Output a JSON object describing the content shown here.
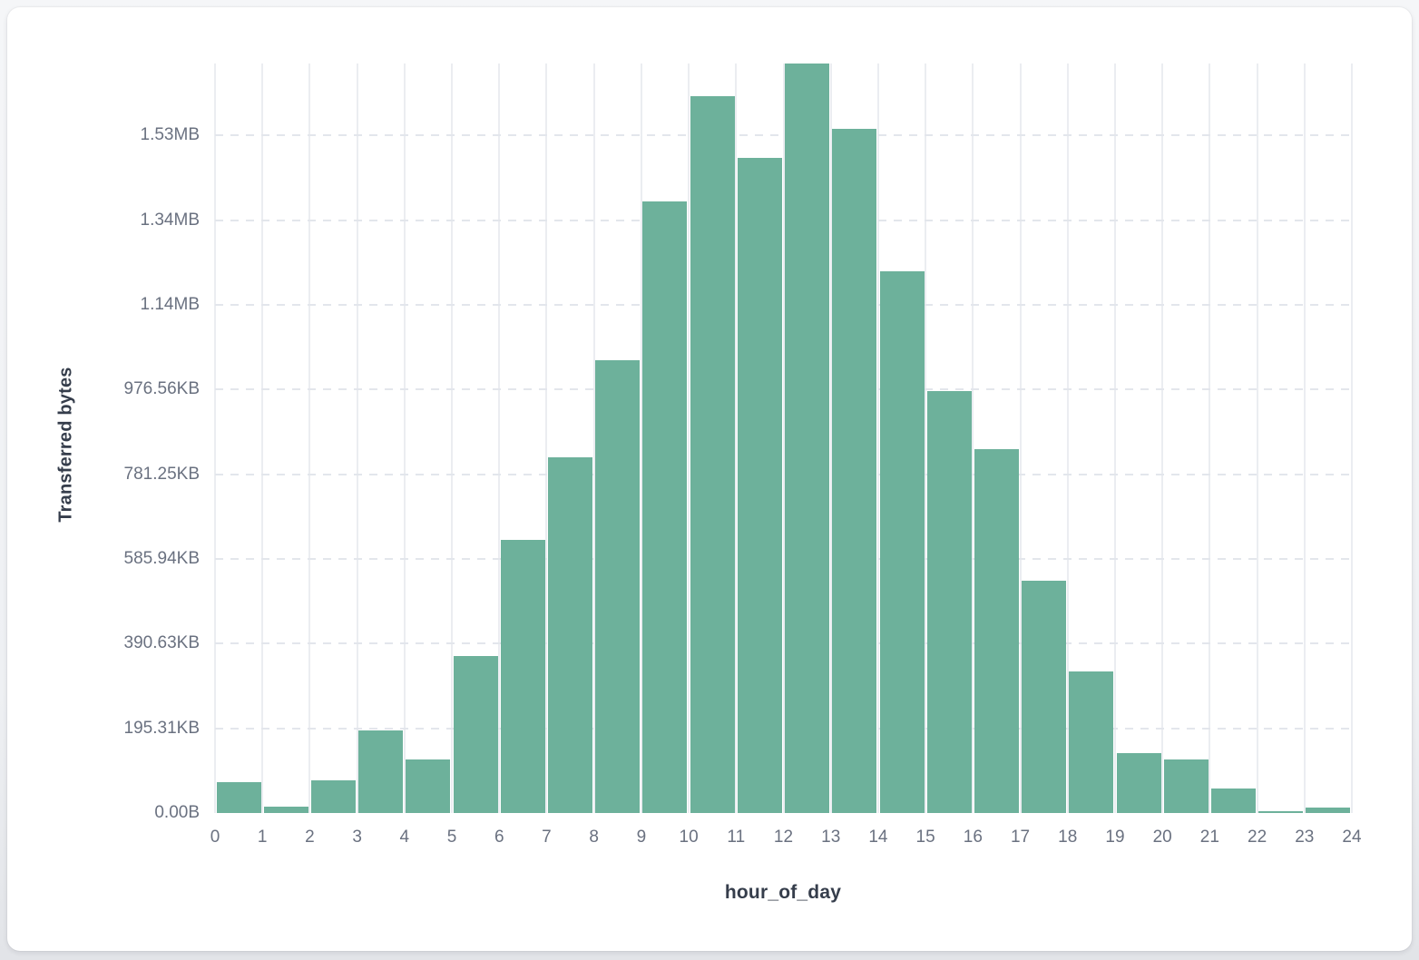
{
  "chart_data": {
    "type": "bar",
    "title": "",
    "xlabel": "hour_of_day",
    "ylabel": "Transferred bytes",
    "y_units": "bytes",
    "bar_color": "#6db19b",
    "grid": true,
    "legend": "none",
    "ylim": [
      0,
      1770000
    ],
    "x_tick_labels": [
      "0",
      "1",
      "2",
      "3",
      "4",
      "5",
      "6",
      "7",
      "8",
      "9",
      "10",
      "11",
      "12",
      "13",
      "14",
      "15",
      "16",
      "17",
      "18",
      "19",
      "20",
      "21",
      "22",
      "23",
      "24"
    ],
    "y_tick_labels": [
      {
        "label": "0.00B",
        "bytes": 0
      },
      {
        "label": "195.31KB",
        "bytes": 200000
      },
      {
        "label": "390.63KB",
        "bytes": 400000
      },
      {
        "label": "585.94KB",
        "bytes": 600000
      },
      {
        "label": "781.25KB",
        "bytes": 800000
      },
      {
        "label": "976.56KB",
        "bytes": 1000000
      },
      {
        "label": "1.14MB",
        "bytes": 1200000
      },
      {
        "label": "1.34MB",
        "bytes": 1400000
      },
      {
        "label": "1.53MB",
        "bytes": 1600000
      }
    ],
    "categories": [
      "0",
      "1",
      "2",
      "3",
      "4",
      "5",
      "6",
      "7",
      "8",
      "9",
      "10",
      "11",
      "12",
      "13",
      "14",
      "15",
      "16",
      "17",
      "18",
      "19",
      "20",
      "21",
      "22",
      "23"
    ],
    "values": [
      73000,
      15000,
      77000,
      196000,
      127000,
      370000,
      644000,
      840000,
      1070000,
      1445000,
      1693000,
      1547000,
      1770000,
      1615000,
      1280000,
      996000,
      859000,
      548000,
      334000,
      141000,
      126000,
      58000,
      4000,
      13000
    ]
  }
}
